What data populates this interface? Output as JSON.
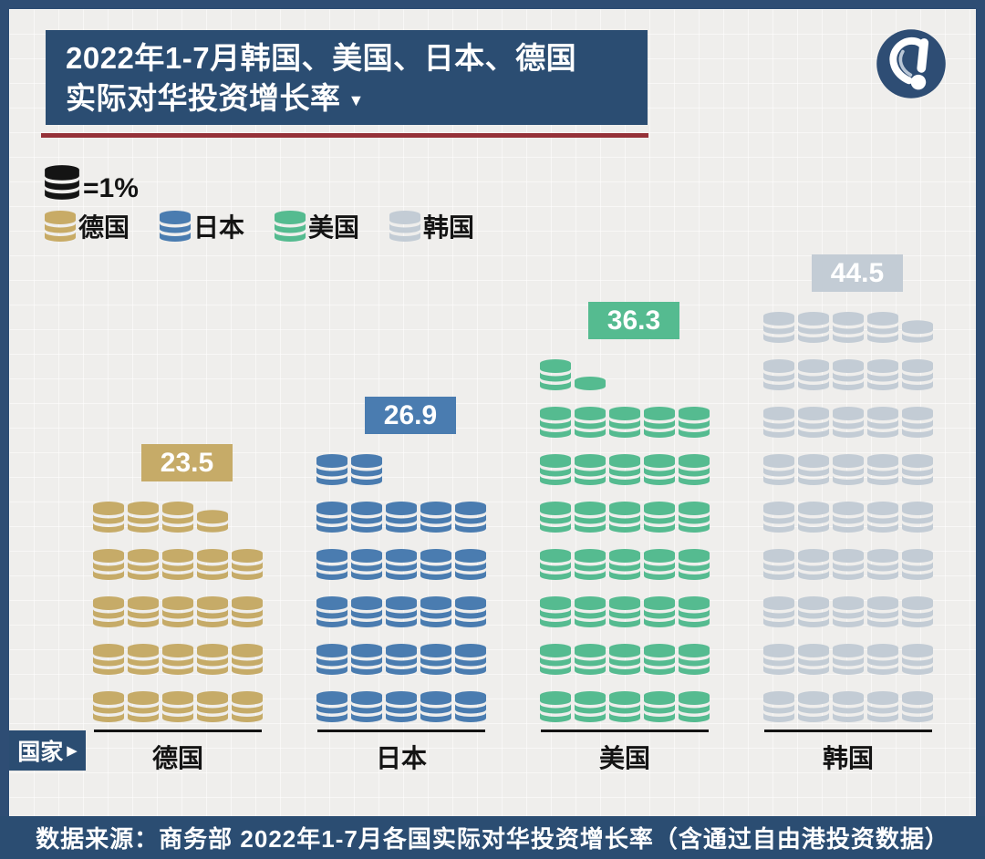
{
  "title": {
    "line1": "2022年1-7月韩国、美国、日本、德国",
    "line2": "实际对华投资增长率",
    "dropdown_icon": "▼"
  },
  "legend": {
    "unit": {
      "label": "=1%",
      "coin_color": "#141414"
    },
    "items": [
      {
        "label": "德国",
        "color": "#c8ab66"
      },
      {
        "label": "日本",
        "color": "#4a7cb0"
      },
      {
        "label": "美国",
        "color": "#55bb90"
      },
      {
        "label": "韩国",
        "color": "#c3ccd5"
      }
    ]
  },
  "chart_data": {
    "type": "bar",
    "subtype": "pictogram",
    "title": "2022年1-7月韩国、美国、日本、德国实际对华投资增长率",
    "unit_per_icon": "1%",
    "icon": "coin-stack",
    "categories": [
      "德国",
      "日本",
      "美国",
      "韩国"
    ],
    "values": [
      23.5,
      26.9,
      36.3,
      44.5
    ],
    "colors": [
      "#c6ab68",
      "#4a7cb0",
      "#55bb90",
      "#c3ccd5"
    ],
    "icons_per_row": 5,
    "icons_rendered": [
      {
        "full_stacks": 23,
        "partial_stack_discs": 2
      },
      {
        "full_stacks": 27,
        "partial_stack_discs": 0
      },
      {
        "full_stacks": 36,
        "partial_stack_discs": 1
      },
      {
        "full_stacks": 44,
        "partial_stack_discs": 2
      }
    ],
    "xlabel": "国家",
    "ylabel": "",
    "legend_position": "top-left",
    "grid": false
  },
  "axis": {
    "label": "国家",
    "arrow": "▶"
  },
  "footer": {
    "text": "数据来源：商务部 2022年1-7月各国实际对华投资增长率（含通过自由港投资数据）"
  },
  "theme": {
    "banner_bg": "#2b4d72",
    "accent_line": "#953138",
    "page_bg": "#efeeec",
    "border": "#2e4d74",
    "text": "#141414"
  }
}
